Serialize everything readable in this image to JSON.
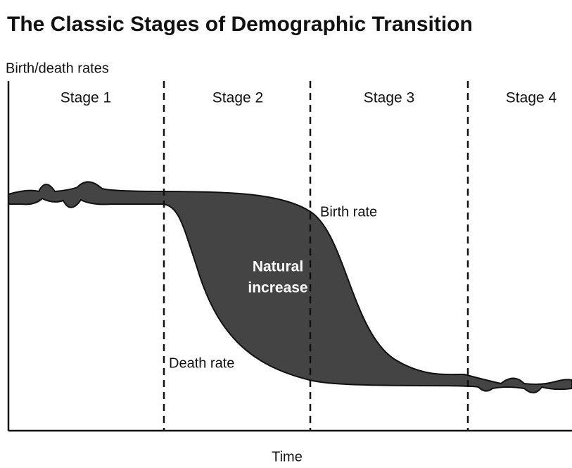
{
  "title": "The Classic Stages of Demographic Transition",
  "y_axis_label": "Birth/death rates",
  "x_axis_label": "Time",
  "stages": [
    "Stage 1",
    "Stage 2",
    "Stage 3",
    "Stage 4"
  ],
  "annotations": {
    "birth_rate": "Birth rate",
    "death_rate": "Death rate",
    "natural_increase": [
      "Natural",
      "increase"
    ]
  }
}
